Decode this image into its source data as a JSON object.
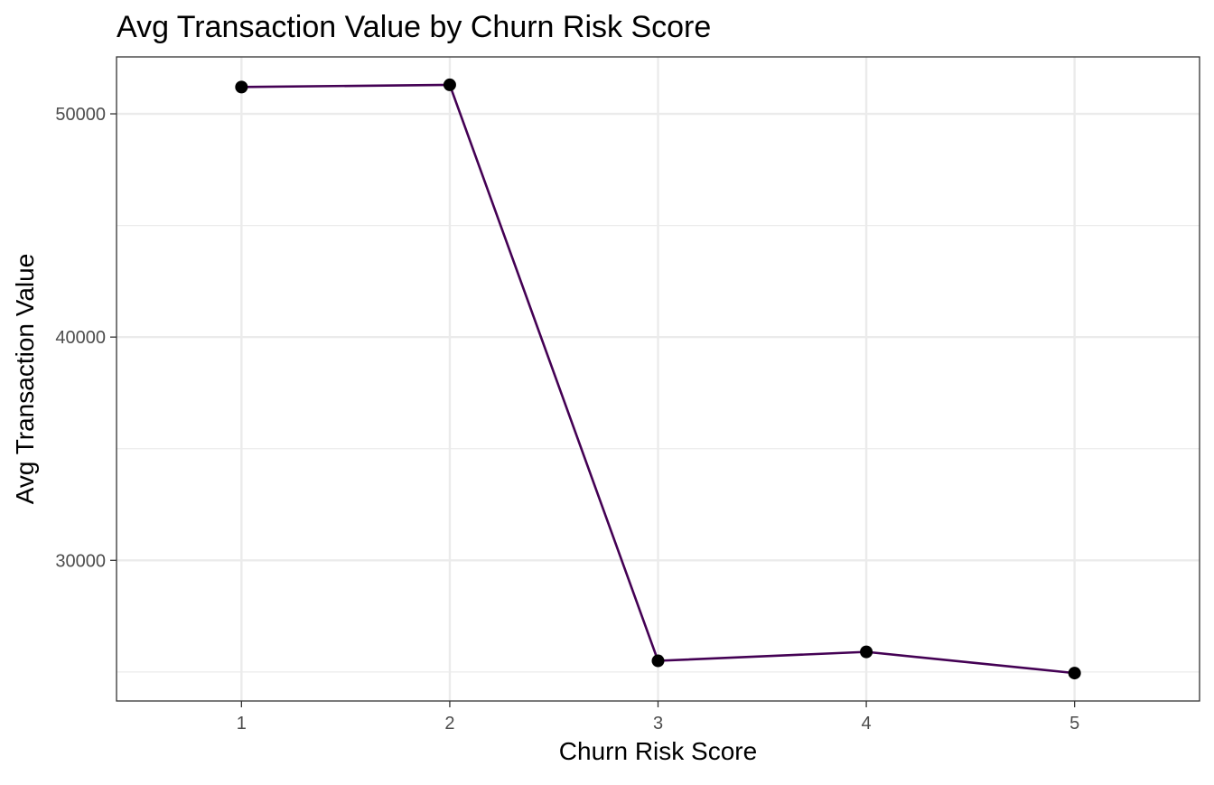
{
  "chart_data": {
    "type": "line",
    "title": "Avg Transaction Value by Churn Risk Score",
    "xlabel": "Churn Risk Score",
    "ylabel": "Avg Transaction Value",
    "x": [
      1,
      2,
      3,
      4,
      5
    ],
    "x_tick_labels": [
      "1",
      "2",
      "3",
      "4",
      "5"
    ],
    "y_ticks": [
      30000,
      40000,
      50000
    ],
    "y_tick_labels": [
      "30000",
      "40000",
      "50000"
    ],
    "series": [
      {
        "values": [
          51200,
          51300,
          25500,
          25900,
          24950
        ]
      }
    ],
    "xlim": [
      0.4,
      5.6
    ],
    "ylim": [
      23700,
      52550
    ],
    "grid": true,
    "legend": "none",
    "colors": {
      "line": "#440154",
      "point": "#000000",
      "grid": "#ebebeb",
      "panel_border": "#333333",
      "tick_label": "#4d4d4d"
    }
  }
}
